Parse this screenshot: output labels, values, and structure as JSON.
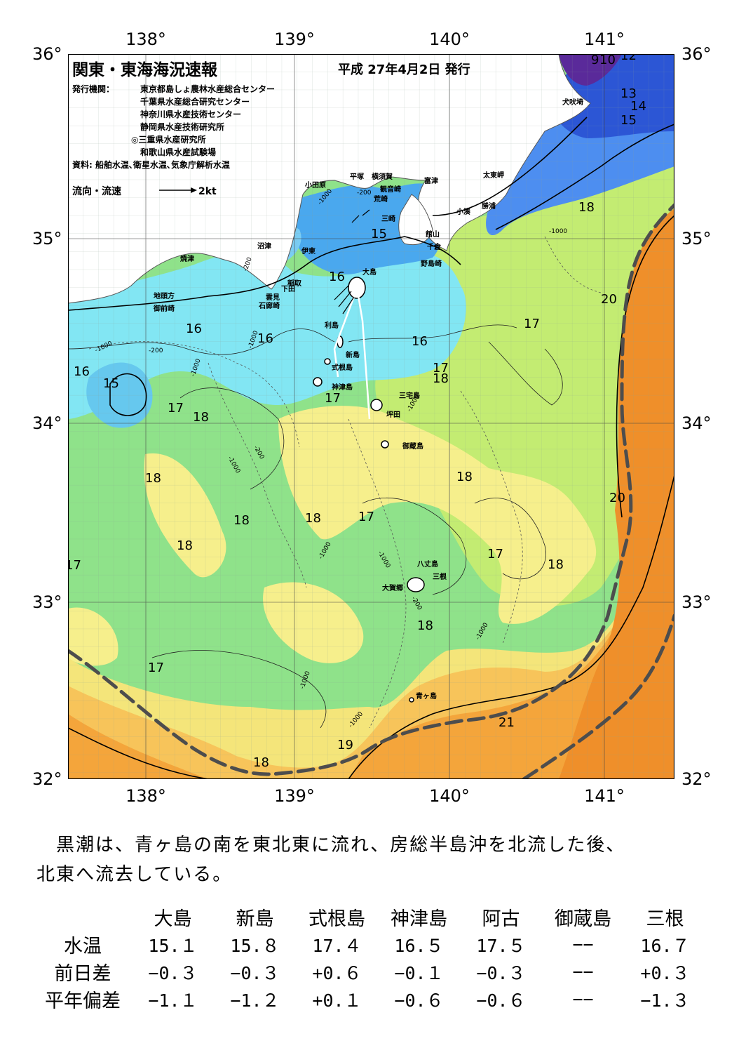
{
  "map": {
    "title": "関東・東海海況速報",
    "issue_date": "平成 27年4月2日 発行",
    "issuers_label": "発行機関：",
    "issuers": [
      "東京都島しょ農林水産総合センター",
      "千葉県水産総合研究センター",
      "神奈川県水産技術センター",
      "静岡県水産技術研究所",
      "◎三重県水産研究所",
      "和歌山県水産試験場"
    ],
    "sources": "資料: 船舶水温､衛星水温､気象庁解析水温",
    "flow_legend_label": "流向・流速",
    "flow_legend_scale": "2kt",
    "lon_ticks": [
      "138°",
      "139°",
      "140°",
      "141°"
    ],
    "lat_ticks": [
      "36°",
      "35°",
      "34°",
      "33°",
      "32°"
    ],
    "place_names": [
      {
        "name": "犬吠埼"
      },
      {
        "name": "太東岬"
      },
      {
        "name": "勝浦"
      },
      {
        "name": "小湊"
      },
      {
        "name": "富津"
      },
      {
        "name": "館山"
      },
      {
        "name": "千倉"
      },
      {
        "name": "野島崎"
      },
      {
        "name": "平塚"
      },
      {
        "name": "横須賀"
      },
      {
        "name": "観音崎"
      },
      {
        "name": "荒崎"
      },
      {
        "name": "三崎"
      },
      {
        "name": "小田原"
      },
      {
        "name": "沼津"
      },
      {
        "name": "伊東"
      },
      {
        "name": "焼津"
      },
      {
        "name": "稲取"
      },
      {
        "name": "下田"
      },
      {
        "name": "雲見"
      },
      {
        "name": "石廊崎"
      },
      {
        "name": "地頭方"
      },
      {
        "name": "御前崎"
      },
      {
        "name": "大島"
      },
      {
        "name": "利島"
      },
      {
        "name": "新島"
      },
      {
        "name": "式根島"
      },
      {
        "name": "神津島"
      },
      {
        "name": "三宅島"
      },
      {
        "name": "坪田"
      },
      {
        "name": "御蔵島"
      },
      {
        "name": "八丈島"
      },
      {
        "name": "三根"
      },
      {
        "name": "大賀郷"
      },
      {
        "name": "青ヶ島"
      }
    ],
    "isotherm_labels": [
      "9",
      "10",
      "12",
      "13",
      "14",
      "15",
      "15",
      "15",
      "16",
      "16",
      "16",
      "16",
      "16",
      "17",
      "17",
      "17",
      "17",
      "17",
      "17",
      "17",
      "17",
      "18",
      "18",
      "18",
      "18",
      "18",
      "18",
      "18",
      "18",
      "18",
      "18",
      "18",
      "19",
      "20",
      "20",
      "21"
    ],
    "depth_labels": [
      "-200",
      "-1000"
    ],
    "colors": {
      "very_cold": "#5a2a9a",
      "cold": "#2f5fd8",
      "cool": "#45a6f0",
      "cyan": "#7fe6f5",
      "green": "#7fe07f",
      "yellowgreen": "#c6ee70",
      "yellow": "#f7f08a",
      "lightorange": "#f7c860",
      "orange": "#f3a23a",
      "deeporange": "#ef8f2a",
      "land": "#ffffff",
      "kuroshio_axis": "#4d4d4d"
    }
  },
  "summary": {
    "line1": "　黒潮は、青ヶ島の南を東北東に流れ、房総半島沖を北流した後、",
    "line2": "北東へ流去している。"
  },
  "table": {
    "columns": [
      "大島",
      "新島",
      "式根島",
      "神津島",
      "阿古",
      "御蔵島",
      "三根"
    ],
    "rows": [
      {
        "label": "水温",
        "values": [
          "15.１",
          "15.８",
          "17.４",
          "16.５",
          "17.５",
          "−−",
          "16.７"
        ]
      },
      {
        "label": "前日差",
        "values": [
          "−0.３",
          "−0.３",
          "+0.６",
          "−0.１",
          "−0.３",
          "−−",
          "+0.３"
        ]
      },
      {
        "label": "平年偏差",
        "values": [
          "−1.１",
          "−1.２",
          "+0.１",
          "−0.６",
          "−0.６",
          "−−",
          "−1.３"
        ]
      }
    ]
  }
}
